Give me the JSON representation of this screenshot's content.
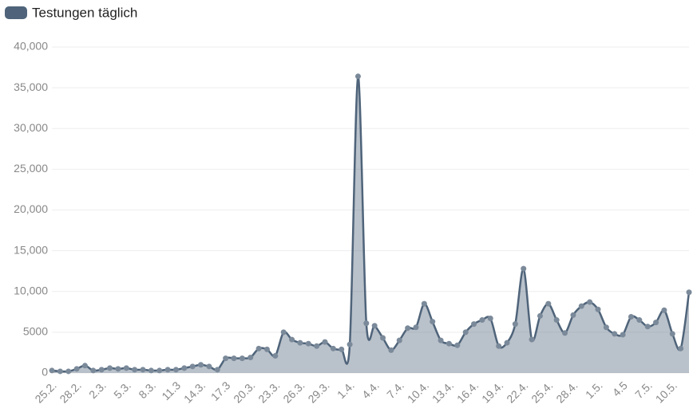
{
  "chart_data": {
    "type": "area",
    "categories": [
      "25.2.",
      null,
      null,
      "28.2.",
      null,
      null,
      "2.3.",
      null,
      null,
      "5.3.",
      null,
      null,
      "8.3.",
      null,
      null,
      "11.3",
      null,
      null,
      "14.3.",
      null,
      null,
      "17.3",
      null,
      null,
      "20.3.",
      null,
      null,
      "23.3.",
      null,
      null,
      "26.3.",
      null,
      null,
      "29.3.",
      null,
      null,
      "1.4.",
      null,
      null,
      "4.4.",
      null,
      null,
      "7.4.",
      null,
      null,
      "10.4.",
      null,
      null,
      "13.4.",
      null,
      null,
      "16.4.",
      null,
      null,
      "19.4.",
      null,
      null,
      "22.4.",
      null,
      null,
      "25.4.",
      null,
      null,
      "28.4.",
      null,
      null,
      "1.5.",
      null,
      null,
      "4.5",
      null,
      null,
      "7.5.",
      null,
      null,
      "10.5.",
      null,
      null
    ],
    "series": [
      {
        "name": "Testungen täglich",
        "color": "#4f647a",
        "values": [
          300,
          200,
          200,
          500,
          900,
          300,
          400,
          600,
          500,
          600,
          400,
          400,
          300,
          300,
          400,
          400,
          600,
          800,
          1000,
          800,
          400,
          1800,
          1800,
          1800,
          1900,
          3000,
          2900,
          2100,
          5000,
          4100,
          3700,
          3600,
          3300,
          3800,
          3000,
          2900,
          3500,
          36400,
          6100,
          5800,
          4300,
          2800,
          4000,
          5500,
          5600,
          8500,
          6300,
          4000,
          3600,
          3400,
          5000,
          6000,
          6500,
          6700,
          3300,
          3700,
          6000,
          12800,
          4100,
          7000,
          8500,
          6500,
          4900,
          7100,
          8200,
          8700,
          7800,
          5600,
          4800,
          4700,
          6900,
          6500,
          5700,
          6200,
          7700,
          4800,
          3000,
          9900
        ]
      }
    ],
    "ylim": [
      0,
      40000
    ],
    "yticks": [
      0,
      5000,
      {
        "value": 10000,
        "label": "10,000"
      },
      {
        "value": 15000,
        "label": "15,000"
      },
      {
        "value": 20000,
        "label": "20,000"
      },
      {
        "value": 25000,
        "label": "25,000"
      },
      {
        "value": 30000,
        "label": "30,000"
      },
      {
        "value": 35000,
        "label": "35,000"
      },
      {
        "value": 40000,
        "label": "40,000"
      }
    ],
    "grid": true
  }
}
